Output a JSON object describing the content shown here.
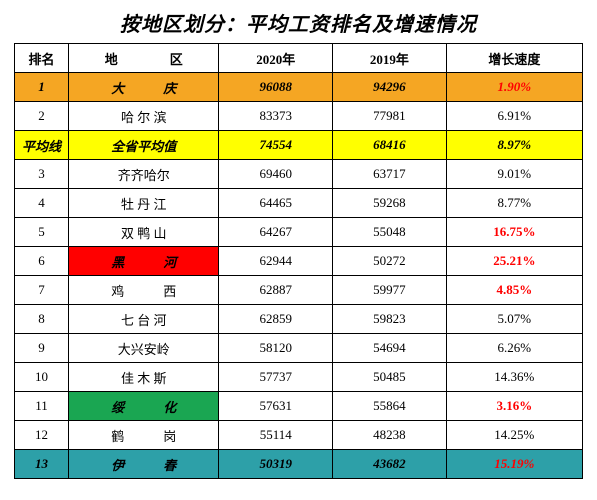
{
  "title": "按地区划分：平均工资排名及增速情况",
  "columns": {
    "rank": "排名",
    "region_left": "地",
    "region_right": "区",
    "y2020": "2020年",
    "y2019": "2019年",
    "growth": "增长速度"
  },
  "colors": {
    "orange": "#f5a623",
    "yellow": "#ffff00",
    "red": "#ff0000",
    "green": "#1aa652",
    "teal": "#2da0a8",
    "growth_red": "#ff0000",
    "black": "#000000",
    "white": "#ffffff"
  },
  "rows": [
    {
      "rank": "1",
      "region": "大　　　庆",
      "y2020": "96088",
      "y2019": "94296",
      "growth": "1.90%",
      "row_bg": "#f5a623",
      "region_bg": "#f5a623",
      "growth_color": "#ff0000",
      "bold": true,
      "italic": true
    },
    {
      "rank": "2",
      "region": "哈 尔 滨",
      "y2020": "83373",
      "y2019": "77981",
      "growth": "6.91%",
      "row_bg": "#ffffff",
      "region_bg": "#ffffff",
      "growth_color": "#000000",
      "bold": false,
      "italic": false
    },
    {
      "rank": "平均线",
      "region": "全省平均值",
      "y2020": "74554",
      "y2019": "68416",
      "growth": "8.97%",
      "row_bg": "#ffff00",
      "region_bg": "#ffff00",
      "growth_color": "#000000",
      "bold": true,
      "italic": true
    },
    {
      "rank": "3",
      "region": "齐齐哈尔",
      "y2020": "69460",
      "y2019": "63717",
      "growth": "9.01%",
      "row_bg": "#ffffff",
      "region_bg": "#ffffff",
      "growth_color": "#000000",
      "bold": false,
      "italic": false
    },
    {
      "rank": "4",
      "region": "牡 丹 江",
      "y2020": "64465",
      "y2019": "59268",
      "growth": "8.77%",
      "row_bg": "#ffffff",
      "region_bg": "#ffffff",
      "growth_color": "#000000",
      "bold": false,
      "italic": false
    },
    {
      "rank": "5",
      "region": "双 鸭 山",
      "y2020": "64267",
      "y2019": "55048",
      "growth": "16.75%",
      "row_bg": "#ffffff",
      "region_bg": "#ffffff",
      "growth_color": "#ff0000",
      "bold": false,
      "italic": false
    },
    {
      "rank": "6",
      "region": "黑　　　河",
      "y2020": "62944",
      "y2019": "50272",
      "growth": "25.21%",
      "row_bg": "#ffffff",
      "region_bg": "#ff0000",
      "growth_color": "#ff0000",
      "bold": false,
      "italic": false,
      "region_bold": true,
      "region_italic": true
    },
    {
      "rank": "7",
      "region": "鸡　　　西",
      "y2020": "62887",
      "y2019": "59977",
      "growth": "4.85%",
      "row_bg": "#ffffff",
      "region_bg": "#ffffff",
      "growth_color": "#ff0000",
      "bold": false,
      "italic": false
    },
    {
      "rank": "8",
      "region": "七 台 河",
      "y2020": "62859",
      "y2019": "59823",
      "growth": "5.07%",
      "row_bg": "#ffffff",
      "region_bg": "#ffffff",
      "growth_color": "#000000",
      "bold": false,
      "italic": false
    },
    {
      "rank": "9",
      "region": "大兴安岭",
      "y2020": "58120",
      "y2019": "54694",
      "growth": "6.26%",
      "row_bg": "#ffffff",
      "region_bg": "#ffffff",
      "growth_color": "#000000",
      "bold": false,
      "italic": false
    },
    {
      "rank": "10",
      "region": "佳 木 斯",
      "y2020": "57737",
      "y2019": "50485",
      "growth": "14.36%",
      "row_bg": "#ffffff",
      "region_bg": "#ffffff",
      "growth_color": "#000000",
      "bold": false,
      "italic": false
    },
    {
      "rank": "11",
      "region": "绥　　　化",
      "y2020": "57631",
      "y2019": "55864",
      "growth": "3.16%",
      "row_bg": "#ffffff",
      "region_bg": "#1aa652",
      "growth_color": "#ff0000",
      "bold": false,
      "italic": false,
      "region_bold": true,
      "region_italic": true
    },
    {
      "rank": "12",
      "region": "鹤　　　岗",
      "y2020": "55114",
      "y2019": "48238",
      "growth": "14.25%",
      "row_bg": "#ffffff",
      "region_bg": "#ffffff",
      "growth_color": "#000000",
      "bold": false,
      "italic": false
    },
    {
      "rank": "13",
      "region": "伊　　　春",
      "y2020": "50319",
      "y2019": "43682",
      "growth": "15.19%",
      "row_bg": "#2da0a8",
      "region_bg": "#2da0a8",
      "growth_color": "#ff0000",
      "bold": true,
      "italic": true
    }
  ]
}
